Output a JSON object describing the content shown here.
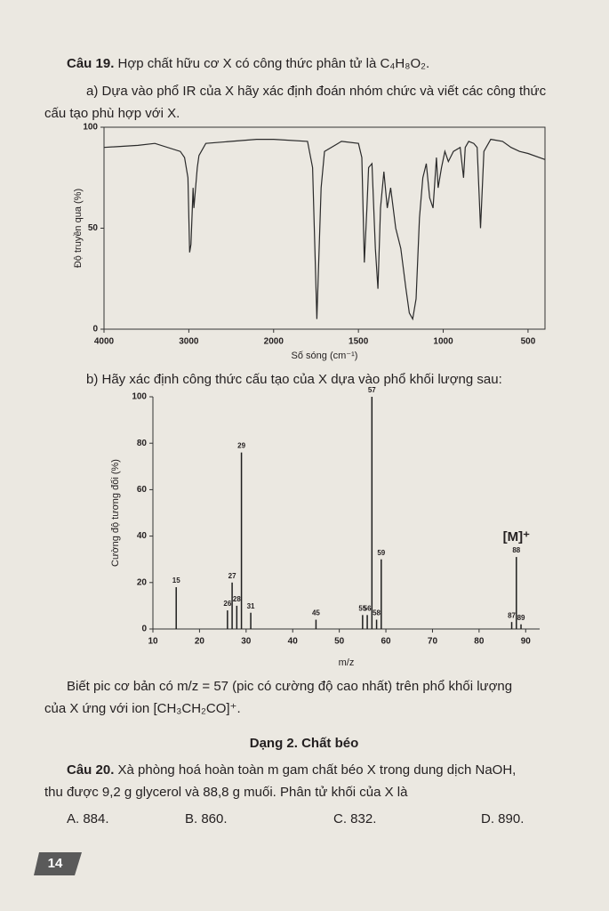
{
  "document": {
    "q19": {
      "label": "Câu 19.",
      "text": "Hợp chất hữu cơ X có công thức phân tử là C₄H₈O₂."
    },
    "part_a": [
      "a) Dựa vào phổ IR của X hãy xác định đoán nhóm chức và viết các công thức",
      "cấu tạo phù hợp với X."
    ],
    "part_b": "b) Hãy xác định công thức cấu tạo của X dựa vào phổ khối lượng sau:",
    "note": [
      "Biết pic cơ bản có m/z = 57 (pic có cường độ cao nhất) trên phổ khối lượng",
      "của X ứng với ion [CH₃CH₂CO]⁺."
    ],
    "section": "Dạng 2. Chất béo",
    "q20": {
      "label": "Câu 20.",
      "lines": [
        "Xà phòng hoá hoàn toàn m gam chất béo X trong dung dịch NaOH,",
        "thu được 9,2 g glycerol và 88,8 g muối. Phân tử khối của X là"
      ]
    },
    "options": [
      "A. 884.",
      "B. 860.",
      "C. 832.",
      "D. 890."
    ],
    "page_number": "14"
  },
  "chart_data": [
    {
      "type": "line",
      "x_label": "Số sóng (cm⁻¹)",
      "y_label": "Độ truyền qua (%)",
      "color": "#2a2a2a",
      "xlim": [
        4000,
        400
      ],
      "ylim": [
        0,
        100
      ],
      "xticks": [
        4000,
        3000,
        2000,
        1500,
        1000,
        500
      ],
      "yticks": [
        0,
        50,
        100
      ],
      "x": [
        4000,
        3600,
        3400,
        3100,
        3050,
        3010,
        2990,
        2975,
        2950,
        2940,
        2900,
        2880,
        2800,
        2500,
        2200,
        2000,
        1800,
        1770,
        1745,
        1720,
        1700,
        1600,
        1500,
        1480,
        1465,
        1450,
        1440,
        1420,
        1400,
        1385,
        1370,
        1350,
        1330,
        1310,
        1280,
        1250,
        1220,
        1200,
        1180,
        1160,
        1140,
        1120,
        1100,
        1080,
        1060,
        1040,
        1030,
        1010,
        990,
        970,
        940,
        900,
        880,
        870,
        850,
        820,
        800,
        780,
        760,
        720,
        650,
        600,
        550,
        500,
        400
      ],
      "values": [
        90,
        91,
        92,
        88,
        85,
        75,
        38,
        42,
        70,
        60,
        80,
        86,
        92,
        93,
        94,
        94,
        93,
        80,
        5,
        70,
        88,
        93,
        92,
        85,
        33,
        60,
        80,
        82,
        40,
        20,
        60,
        78,
        60,
        70,
        50,
        40,
        20,
        8,
        5,
        15,
        55,
        75,
        82,
        65,
        60,
        85,
        70,
        80,
        88,
        83,
        88,
        90,
        75,
        90,
        93,
        92,
        90,
        50,
        88,
        94,
        93,
        90,
        88,
        87,
        84
      ]
    },
    {
      "type": "bar",
      "x_label": "m/z",
      "y_label": "Cường độ tương đối (%)",
      "color": "#1e1e1e",
      "annotation": "[M]⁺",
      "xlim": [
        10,
        93
      ],
      "ylim": [
        0,
        100
      ],
      "xticks": [
        10,
        20,
        30,
        40,
        50,
        60,
        70,
        80,
        90
      ],
      "yticks": [
        0,
        20,
        40,
        60,
        80,
        100
      ],
      "x": [
        15,
        26,
        27,
        28,
        29,
        31,
        45,
        55,
        56,
        57,
        58,
        59,
        87,
        88,
        89
      ],
      "values": [
        18,
        8,
        20,
        10,
        76,
        7,
        4,
        6,
        6,
        100,
        4,
        30,
        3,
        31,
        2
      ]
    }
  ]
}
